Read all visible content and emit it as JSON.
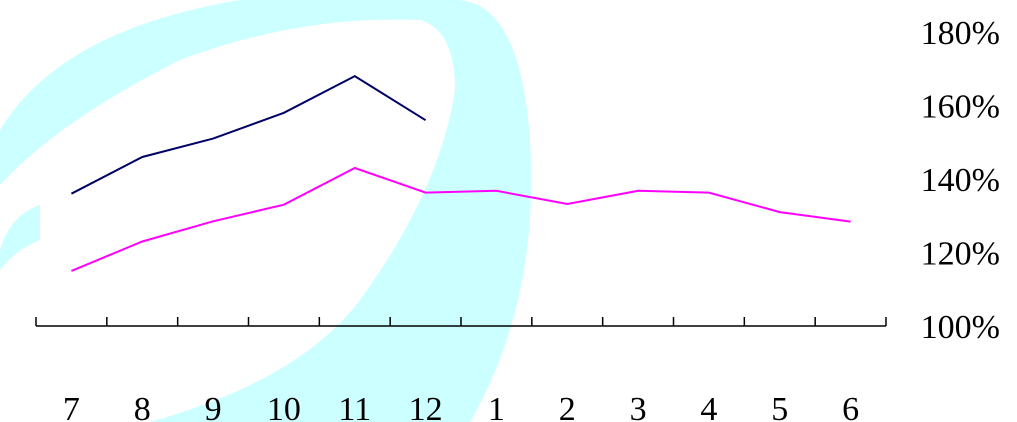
{
  "chart_data": {
    "type": "line",
    "categories": [
      "7",
      "8",
      "9",
      "10",
      "11",
      "12",
      "1",
      "2",
      "3",
      "4",
      "5",
      "6"
    ],
    "series": [
      {
        "color": "#000066",
        "values": [
          136,
          146,
          151,
          158,
          168,
          156,
          null,
          null,
          null,
          null,
          null,
          null
        ]
      },
      {
        "color": "#FF00FF",
        "values": [
          115,
          123,
          128.5,
          133,
          143,
          136.3,
          136.8,
          133.2,
          136.8,
          136.3,
          131,
          128.4
        ]
      }
    ],
    "y_tick_labels": [
      "180%",
      "160%",
      "140%",
      "120%",
      "100%"
    ],
    "y_ticks": [
      180,
      160,
      140,
      120,
      100
    ],
    "ylim": [
      100,
      180
    ],
    "ylabel": "",
    "xlabel": "",
    "title": "",
    "axis_side": "right",
    "grid": false,
    "legend": "none"
  },
  "watermark_color": "#CCFFFF"
}
